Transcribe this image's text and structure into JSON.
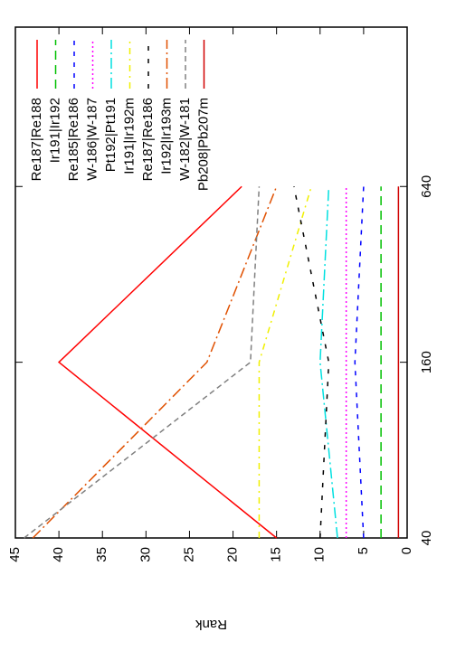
{
  "chart_data": {
    "type": "line",
    "y_label": "Rank",
    "x": [
      40,
      160,
      640
    ],
    "xlim": [
      40,
      2250
    ],
    "xticks": [
      40,
      160,
      640
    ],
    "xscale": "log",
    "ylim": [
      0,
      45
    ],
    "yticks": [
      0,
      5,
      10,
      15,
      20,
      25,
      30,
      35,
      40,
      45
    ],
    "grid": false,
    "legend": "top right",
    "series": [
      {
        "name": "Re187|Re188",
        "color": "#ff0000",
        "dash": "none",
        "values": [
          15,
          40,
          19
        ]
      },
      {
        "name": "Ir191|Ir192",
        "color": "#00c000",
        "dash": "10 6",
        "values": [
          3,
          3,
          3
        ]
      },
      {
        "name": "Re185|Re186",
        "color": "#0000ff",
        "dash": "5 7",
        "values": [
          5,
          6,
          5
        ]
      },
      {
        "name": "W-186|W-187",
        "color": "#ff00ff",
        "dash": "2 3",
        "values": [
          7,
          7,
          7
        ]
      },
      {
        "name": "Pt192|Pt191",
        "color": "#00e0e0",
        "dash": "12 4 2 4",
        "values": [
          8,
          10,
          9
        ]
      },
      {
        "name": "Ir191|Ir192m",
        "color": "#f0f000",
        "dash": "7 5 2 5",
        "values": [
          17,
          17,
          11
        ]
      },
      {
        "name": "Re187|Re186",
        "color": "#000000",
        "dash": "5 9",
        "values": [
          10,
          9,
          13
        ]
      },
      {
        "name": "Ir192|Ir193m",
        "color": "#e05000",
        "dash": "12 4 2 4",
        "values": [
          43,
          23,
          15
        ]
      },
      {
        "name": "W-182|W-181",
        "color": "#808080",
        "dash": "6 4",
        "values": [
          44,
          18,
          17
        ]
      },
      {
        "name": "Pb208|Pb207m",
        "color": "#d00000",
        "dash": "none",
        "values": [
          1,
          1,
          1
        ]
      }
    ]
  }
}
